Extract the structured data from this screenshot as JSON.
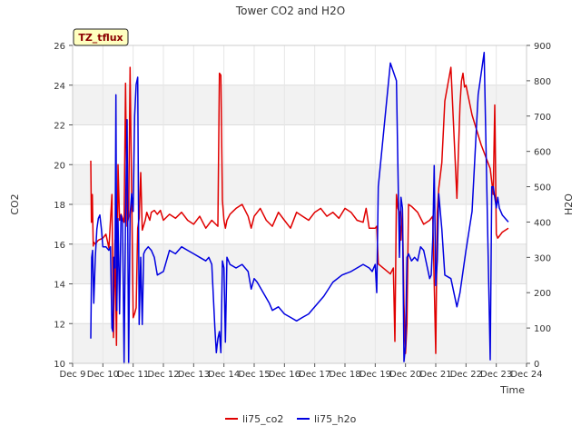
{
  "chart_data": {
    "type": "line",
    "title": "Tower CO2 and H2O",
    "site_badge": "TZ_tflux",
    "xlabel": "Time",
    "ylabel_left": "CO2",
    "ylabel_right": "H2O",
    "xlim": [
      9,
      24
    ],
    "ylim_left": [
      10,
      26
    ],
    "ylim_right": [
      0,
      900
    ],
    "x_ticks": [
      9,
      10,
      11,
      12,
      13,
      14,
      15,
      16,
      17,
      18,
      19,
      20,
      21,
      22,
      23,
      24
    ],
    "x_tick_labels": [
      "Dec 9",
      "Dec 10",
      "Dec 11",
      "Dec 12",
      "Dec 13",
      "Dec 14",
      "Dec 15",
      "Dec 16",
      "Dec 17",
      "Dec 18",
      "Dec 19",
      "Dec 20",
      "Dec 21",
      "Dec 22",
      "Dec 23",
      "Dec 24"
    ],
    "y_ticks_left": [
      10,
      12,
      14,
      16,
      18,
      20,
      22,
      24,
      26
    ],
    "y_tick_labels_left": [
      "10",
      "12",
      "14",
      "16",
      "18",
      "20",
      "22",
      "24",
      "26"
    ],
    "y_ticks_right": [
      0,
      100,
      200,
      300,
      400,
      500,
      600,
      700,
      800,
      900
    ],
    "y_tick_labels_right": [
      "0",
      "100",
      "200",
      "300",
      "400",
      "500",
      "600",
      "700",
      "800",
      "900"
    ],
    "grid": true,
    "legend_position": "bottom-center",
    "series": [
      {
        "name": "li75_co2",
        "axis": "left",
        "color": "#e00000",
        "x": [
          9.6,
          9.62,
          9.65,
          9.68,
          9.7,
          9.75,
          9.85,
          10.0,
          10.1,
          10.2,
          10.3,
          10.35,
          10.4,
          10.45,
          10.5,
          10.55,
          10.6,
          10.7,
          10.75,
          10.8,
          10.85,
          10.9,
          11.0,
          11.05,
          11.1,
          11.15,
          11.2,
          11.25,
          11.3,
          11.4,
          11.45,
          11.5,
          11.55,
          11.6,
          11.7,
          11.8,
          11.9,
          12.0,
          12.2,
          12.4,
          12.6,
          12.8,
          13.0,
          13.2,
          13.4,
          13.6,
          13.8,
          13.85,
          13.9,
          13.95,
          14.0,
          14.05,
          14.1,
          14.2,
          14.4,
          14.6,
          14.8,
          14.9,
          15.0,
          15.2,
          15.4,
          15.6,
          15.8,
          16.0,
          16.2,
          16.4,
          16.6,
          16.8,
          17.0,
          17.2,
          17.4,
          17.6,
          17.8,
          18.0,
          18.2,
          18.4,
          18.6,
          18.7,
          18.8,
          19.0,
          19.05,
          19.1,
          19.5,
          19.6,
          19.65,
          19.7,
          19.75,
          19.8,
          19.85,
          19.9,
          19.95,
          20.0,
          20.05,
          20.1,
          20.2,
          20.4,
          20.6,
          20.8,
          20.9,
          21.0,
          21.05,
          21.1,
          21.2,
          21.3,
          21.5,
          21.7,
          21.8,
          21.85,
          21.9,
          21.95,
          22.0,
          22.2,
          22.5,
          22.8,
          22.9,
          22.95,
          23.0,
          23.05,
          23.1,
          23.2,
          23.4
        ],
        "values": [
          20.2,
          17.1,
          18.5,
          15.9,
          16.1,
          16.0,
          16.2,
          16.3,
          16.5,
          15.8,
          18.5,
          11.3,
          16.2,
          10.9,
          20.0,
          17.2,
          17.5,
          17.1,
          24.1,
          16.9,
          17.4,
          24.9,
          12.3,
          12.5,
          12.8,
          16.8,
          17.3,
          19.6,
          16.7,
          17.2,
          17.6,
          17.4,
          17.2,
          17.6,
          17.7,
          17.5,
          17.7,
          17.2,
          17.5,
          17.3,
          17.6,
          17.2,
          17.0,
          17.4,
          16.8,
          17.2,
          16.9,
          24.6,
          24.5,
          18.2,
          17.2,
          16.8,
          17.2,
          17.5,
          17.8,
          18.0,
          17.4,
          16.8,
          17.4,
          17.8,
          17.2,
          16.9,
          17.6,
          17.2,
          16.8,
          17.6,
          17.4,
          17.2,
          17.6,
          17.8,
          17.4,
          17.6,
          17.3,
          17.8,
          17.6,
          17.2,
          17.1,
          17.8,
          16.8,
          16.8,
          16.9,
          15.0,
          14.5,
          14.8,
          11.1,
          18.5,
          17.8,
          17.6,
          16.2,
          17.8,
          13.0,
          10.5,
          12.0,
          18.0,
          17.9,
          17.6,
          17.0,
          17.2,
          17.4,
          10.5,
          17.6,
          18.8,
          20.1,
          23.2,
          24.9,
          18.3,
          23.0,
          24.2,
          24.6,
          23.9,
          24.0,
          22.5,
          21.0,
          19.8,
          18.5,
          23.0,
          16.5,
          16.3,
          16.4,
          16.6,
          16.8
        ]
      },
      {
        "name": "li75_h2o",
        "axis": "right",
        "color": "#0000e0",
        "x": [
          9.6,
          9.63,
          9.66,
          9.7,
          9.75,
          9.8,
          9.85,
          9.9,
          9.95,
          10.0,
          10.1,
          10.2,
          10.25,
          10.3,
          10.33,
          10.36,
          10.4,
          10.43,
          10.46,
          10.5,
          10.55,
          10.6,
          10.65,
          10.7,
          10.75,
          10.8,
          10.85,
          10.9,
          10.95,
          11.0,
          11.05,
          11.1,
          11.15,
          11.2,
          11.25,
          11.3,
          11.35,
          11.4,
          11.5,
          11.6,
          11.7,
          11.8,
          12.0,
          12.2,
          12.4,
          12.6,
          12.8,
          13.0,
          13.2,
          13.4,
          13.5,
          13.6,
          13.7,
          13.75,
          13.8,
          13.85,
          13.9,
          13.95,
          14.0,
          14.05,
          14.1,
          14.15,
          14.2,
          14.4,
          14.6,
          14.8,
          14.9,
          15.0,
          15.1,
          15.3,
          15.5,
          15.6,
          15.8,
          16.0,
          16.2,
          16.4,
          16.6,
          16.8,
          17.0,
          17.3,
          17.6,
          17.9,
          18.2,
          18.4,
          18.6,
          18.8,
          18.9,
          19.0,
          19.05,
          19.1,
          19.5,
          19.7,
          19.8,
          19.85,
          19.9,
          19.95,
          20.0,
          20.05,
          20.1,
          20.2,
          20.3,
          20.4,
          20.5,
          20.6,
          20.7,
          20.8,
          20.85,
          20.9,
          20.95,
          21.0,
          21.05,
          21.1,
          21.2,
          21.3,
          21.5,
          21.7,
          21.8,
          22.0,
          22.2,
          22.4,
          22.6,
          22.8,
          22.85,
          22.9,
          22.95,
          23.0,
          23.05,
          23.1,
          23.2,
          23.3,
          23.4
        ],
        "values": [
          70,
          300,
          320,
          170,
          300,
          380,
          410,
          420,
          380,
          330,
          330,
          320,
          330,
          100,
          90,
          300,
          270,
          760,
          150,
          410,
          140,
          420,
          400,
          0,
          420,
          690,
          0,
          420,
          480,
          430,
          700,
          790,
          810,
          110,
          300,
          110,
          310,
          320,
          330,
          320,
          300,
          250,
          260,
          320,
          310,
          330,
          320,
          310,
          300,
          290,
          300,
          280,
          100,
          30,
          70,
          90,
          30,
          290,
          270,
          60,
          300,
          290,
          280,
          270,
          280,
          260,
          210,
          240,
          230,
          200,
          170,
          150,
          160,
          140,
          130,
          120,
          130,
          140,
          160,
          190,
          230,
          250,
          260,
          270,
          280,
          270,
          260,
          280,
          200,
          500,
          850,
          800,
          300,
          470,
          440,
          5,
          50,
          300,
          310,
          290,
          300,
          290,
          330,
          320,
          280,
          240,
          250,
          350,
          560,
          220,
          290,
          480,
          380,
          250,
          240,
          160,
          200,
          320,
          430,
          760,
          880,
          10,
          500,
          500,
          470,
          440,
          470,
          440,
          420,
          410,
          400
        ]
      }
    ]
  },
  "legend": {
    "items": [
      {
        "label": "li75_co2",
        "color": "#e00000"
      },
      {
        "label": "li75_h2o",
        "color": "#0000e0"
      }
    ]
  }
}
